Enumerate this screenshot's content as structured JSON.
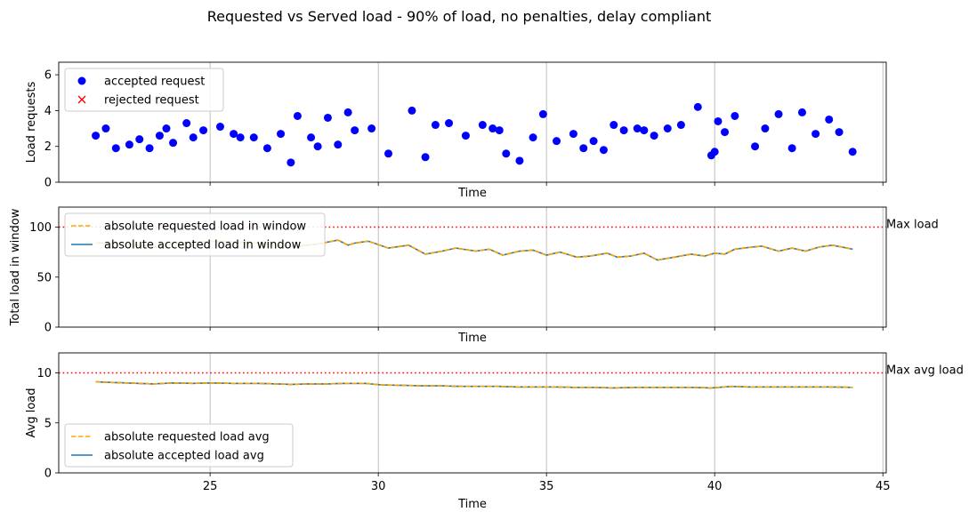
{
  "figure": {
    "suptitle": "Requested vs Served load - 90% of load, no penalties, delay compliant"
  },
  "colors": {
    "accepted_marker": "#0000ff",
    "rejected_marker": "#ff0000",
    "requested_line": "#ffa500",
    "accepted_line": "#1f77b4",
    "limit_line": "#ff0000",
    "grid": "#b0b0b0"
  },
  "chart_data": [
    {
      "type": "scatter",
      "title": "",
      "xlabel": "Time",
      "ylabel": "Load requests",
      "xlim": [
        20.5,
        45.1
      ],
      "ylim": [
        0,
        6.7
      ],
      "xticks": [
        25,
        30,
        35,
        40,
        45
      ],
      "yticks": [
        0,
        2,
        4,
        6
      ],
      "grid": "vertical",
      "legend": "upper-left",
      "series": [
        {
          "name": "accepted request",
          "marker": "dot",
          "x": [
            21.6,
            21.9,
            22.2,
            22.6,
            22.9,
            23.2,
            23.5,
            23.7,
            23.9,
            24.3,
            24.5,
            24.8,
            25.3,
            25.7,
            25.9,
            26.3,
            26.7,
            27.1,
            27.4,
            27.6,
            28.0,
            28.2,
            28.5,
            28.8,
            29.1,
            29.3,
            29.8,
            30.3,
            31.0,
            31.4,
            31.7,
            32.1,
            32.6,
            33.1,
            33.4,
            33.6,
            33.8,
            34.2,
            34.6,
            34.9,
            35.3,
            35.8,
            36.1,
            36.4,
            36.7,
            37.0,
            37.3,
            37.7,
            37.9,
            38.2,
            38.6,
            39.0,
            39.5,
            39.9,
            40.0,
            40.1,
            40.3,
            40.6,
            41.2,
            41.5,
            41.9,
            42.3,
            42.6,
            43.0,
            43.4,
            43.7,
            44.1
          ],
          "y": [
            2.6,
            3.0,
            1.9,
            2.1,
            2.4,
            1.9,
            2.6,
            3.0,
            2.2,
            3.3,
            2.5,
            2.9,
            3.1,
            2.7,
            2.5,
            2.5,
            1.9,
            2.7,
            1.1,
            3.7,
            2.5,
            2.0,
            3.6,
            2.1,
            3.9,
            2.9,
            3.0,
            1.6,
            4.0,
            1.4,
            3.2,
            3.3,
            2.6,
            3.2,
            3.0,
            2.9,
            1.6,
            1.2,
            2.5,
            3.8,
            2.3,
            2.7,
            1.9,
            2.3,
            1.8,
            3.2,
            2.9,
            3.0,
            2.9,
            2.6,
            3.0,
            3.2,
            4.2,
            1.5,
            1.7,
            3.4,
            2.8,
            3.7,
            2.0,
            3.0,
            3.8,
            1.9,
            3.9,
            2.7,
            3.5,
            2.8,
            1.7
          ]
        },
        {
          "name": "rejected request",
          "marker": "x",
          "x": [],
          "y": []
        }
      ]
    },
    {
      "type": "line",
      "title": "",
      "xlabel": "Time",
      "ylabel": "Total load in window",
      "xlim": [
        20.5,
        45.1
      ],
      "ylim": [
        0,
        120
      ],
      "xticks": [
        25,
        30,
        35,
        40,
        45
      ],
      "yticks": [
        0,
        50,
        100
      ],
      "grid": "vertical",
      "legend": "upper-left",
      "hline": {
        "y": 100,
        "label": "Max load",
        "style": "dotted"
      },
      "series": [
        {
          "name": "absolute requested load in window",
          "style": "dashed",
          "x": [
            21.6,
            22.2,
            22.8,
            23.4,
            24.0,
            24.6,
            25.2,
            25.8,
            26.4,
            27.0,
            27.6,
            28.2,
            28.8,
            29.1,
            29.3,
            29.7,
            30.3,
            30.9,
            31.4,
            31.9,
            32.3,
            32.9,
            33.3,
            33.7,
            34.2,
            34.6,
            35.0,
            35.4,
            35.9,
            36.3,
            36.8,
            37.1,
            37.5,
            37.9,
            38.3,
            38.8,
            39.3,
            39.7,
            40.0,
            40.3,
            40.6,
            41.1,
            41.4,
            41.9,
            42.3,
            42.7,
            43.1,
            43.5,
            44.1
          ],
          "y": [
            84,
            84,
            82,
            80,
            84,
            85,
            86,
            85,
            84,
            82,
            81,
            83,
            87,
            82,
            84,
            86,
            79,
            82,
            73,
            76,
            79,
            76,
            78,
            72,
            76,
            77,
            72,
            75,
            70,
            71,
            74,
            70,
            71,
            74,
            67,
            70,
            73,
            71,
            74,
            73,
            78,
            80,
            81,
            76,
            79,
            76,
            80,
            82,
            78
          ]
        },
        {
          "name": "absolute accepted load in window",
          "style": "solid",
          "x": [
            21.6,
            22.2,
            22.8,
            23.4,
            24.0,
            24.6,
            25.2,
            25.8,
            26.4,
            27.0,
            27.6,
            28.2,
            28.8,
            29.1,
            29.3,
            29.7,
            30.3,
            30.9,
            31.4,
            31.9,
            32.3,
            32.9,
            33.3,
            33.7,
            34.2,
            34.6,
            35.0,
            35.4,
            35.9,
            36.3,
            36.8,
            37.1,
            37.5,
            37.9,
            38.3,
            38.8,
            39.3,
            39.7,
            40.0,
            40.3,
            40.6,
            41.1,
            41.4,
            41.9,
            42.3,
            42.7,
            43.1,
            43.5,
            44.1
          ],
          "y": [
            84,
            84,
            82,
            80,
            84,
            85,
            86,
            85,
            84,
            82,
            81,
            83,
            87,
            82,
            84,
            86,
            79,
            82,
            73,
            76,
            79,
            76,
            78,
            72,
            76,
            77,
            72,
            75,
            70,
            71,
            74,
            70,
            71,
            74,
            67,
            70,
            73,
            71,
            74,
            73,
            78,
            80,
            81,
            76,
            79,
            76,
            80,
            82,
            78
          ]
        }
      ]
    },
    {
      "type": "line",
      "title": "",
      "xlabel": "Time",
      "ylabel": "Avg load",
      "xlim": [
        20.5,
        45.1
      ],
      "ylim": [
        0,
        12
      ],
      "xticks": [
        25,
        30,
        35,
        40,
        45
      ],
      "yticks": [
        0,
        5,
        10
      ],
      "grid": "vertical",
      "legend": "lower-left",
      "hline": {
        "y": 10,
        "label": "Max avg load",
        "style": "dotted"
      },
      "series": [
        {
          "name": "absolute requested load avg",
          "style": "dashed",
          "x": [
            21.6,
            22.5,
            23.3,
            23.9,
            24.5,
            25.0,
            25.7,
            26.4,
            27.0,
            27.4,
            27.9,
            28.5,
            29.0,
            29.6,
            30.1,
            30.8,
            31.3,
            31.9,
            32.5,
            33.0,
            33.6,
            34.1,
            34.6,
            35.2,
            35.8,
            36.4,
            37.0,
            37.6,
            38.2,
            38.8,
            39.3,
            39.9,
            40.5,
            41.0,
            41.6,
            42.2,
            42.8,
            43.4,
            44.1
          ],
          "y": [
            9.1,
            9.0,
            8.9,
            9.0,
            8.95,
            9.0,
            8.95,
            8.95,
            8.9,
            8.85,
            8.9,
            8.9,
            8.95,
            8.95,
            8.8,
            8.75,
            8.7,
            8.7,
            8.65,
            8.65,
            8.65,
            8.6,
            8.6,
            8.6,
            8.55,
            8.55,
            8.5,
            8.55,
            8.55,
            8.55,
            8.55,
            8.5,
            8.65,
            8.6,
            8.6,
            8.6,
            8.6,
            8.6,
            8.55
          ]
        },
        {
          "name": "absolute accepted load avg",
          "style": "solid",
          "x": [
            21.6,
            22.5,
            23.3,
            23.9,
            24.5,
            25.0,
            25.7,
            26.4,
            27.0,
            27.4,
            27.9,
            28.5,
            29.0,
            29.6,
            30.1,
            30.8,
            31.3,
            31.9,
            32.5,
            33.0,
            33.6,
            34.1,
            34.6,
            35.2,
            35.8,
            36.4,
            37.0,
            37.6,
            38.2,
            38.8,
            39.3,
            39.9,
            40.5,
            41.0,
            41.6,
            42.2,
            42.8,
            43.4,
            44.1
          ],
          "y": [
            9.1,
            9.0,
            8.9,
            9.0,
            8.95,
            9.0,
            8.95,
            8.95,
            8.9,
            8.85,
            8.9,
            8.9,
            8.95,
            8.95,
            8.8,
            8.75,
            8.7,
            8.7,
            8.65,
            8.65,
            8.65,
            8.6,
            8.6,
            8.6,
            8.55,
            8.55,
            8.5,
            8.55,
            8.55,
            8.55,
            8.55,
            8.5,
            8.65,
            8.6,
            8.6,
            8.6,
            8.6,
            8.6,
            8.55
          ]
        }
      ]
    }
  ]
}
